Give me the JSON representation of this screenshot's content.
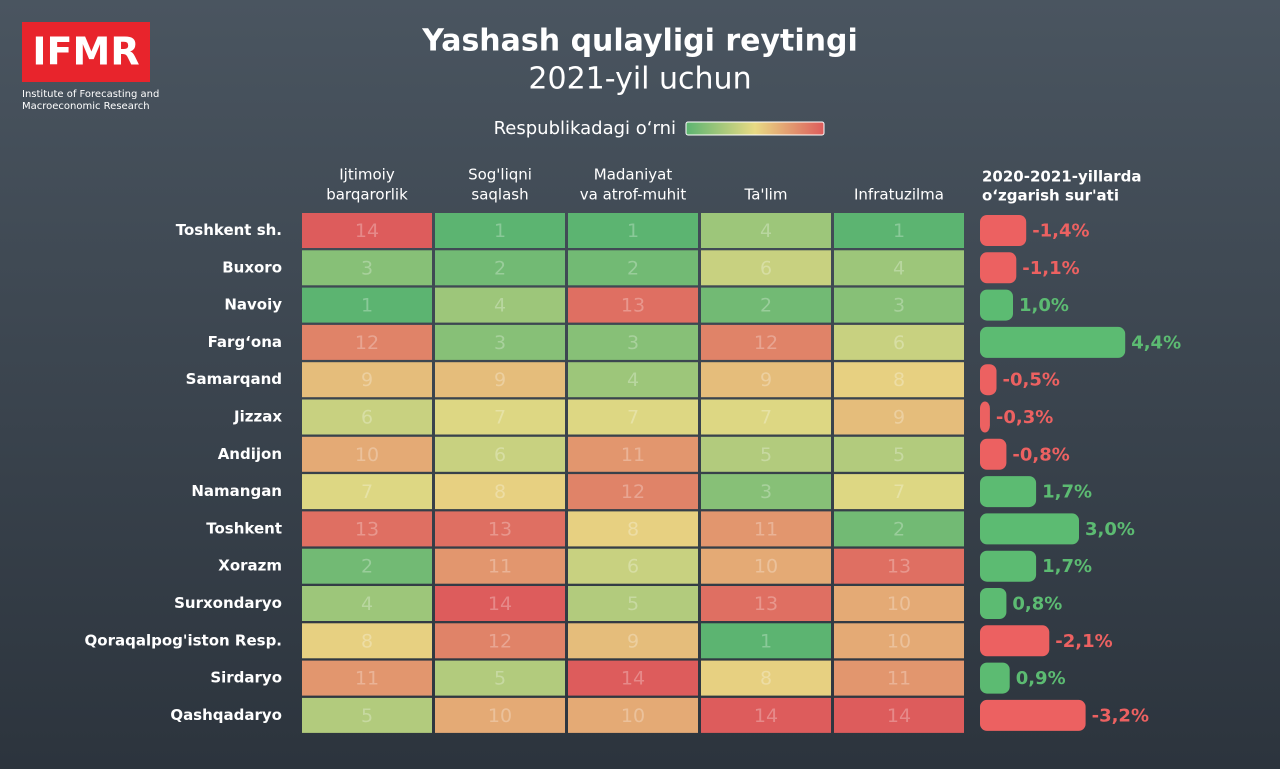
{
  "logo_text": "IFMR",
  "logo_subtitle": [
    "Institute of Forecasting and",
    "Macroeconomic Research"
  ],
  "chart_data": [
    {
      "type": "heatmap",
      "title": "Yashash qulayligi reytingi",
      "subtitle": "2021-yil uchun",
      "legend_label": "Respublikadagi o‘rni",
      "colorscale": [
        "#5cb471",
        "#e8da84",
        "#dd5c5c"
      ],
      "columns": [
        [
          "Ijtimoiy",
          "barqarorlik"
        ],
        [
          "Sog'liqni",
          "saqlash"
        ],
        [
          "Madaniyat",
          "va atrof-muhit"
        ],
        [
          "Ta'lim"
        ],
        [
          "Infratuzilma"
        ]
      ],
      "rows": [
        "Toshkent sh.",
        "Buxoro",
        "Navoiy",
        "Farg‘ona",
        "Samarqand",
        "Jizzax",
        "Andijon",
        "Namangan",
        "Toshkent",
        "Xorazm",
        "Surxondaryo",
        "Qoraqalpog'iston Resp.",
        "Sirdaryo",
        "Qashqadaryo"
      ],
      "values": [
        [
          14,
          1,
          1,
          4,
          1
        ],
        [
          3,
          2,
          2,
          6,
          4
        ],
        [
          1,
          4,
          13,
          2,
          3
        ],
        [
          12,
          3,
          3,
          12,
          6
        ],
        [
          9,
          9,
          4,
          9,
          8
        ],
        [
          6,
          7,
          7,
          7,
          9
        ],
        [
          10,
          6,
          11,
          5,
          5
        ],
        [
          7,
          8,
          12,
          3,
          7
        ],
        [
          13,
          13,
          8,
          11,
          2
        ],
        [
          2,
          11,
          6,
          10,
          13
        ],
        [
          4,
          14,
          5,
          13,
          10
        ],
        [
          8,
          12,
          9,
          1,
          10
        ],
        [
          11,
          5,
          14,
          8,
          11
        ],
        [
          5,
          10,
          10,
          14,
          14
        ]
      ]
    },
    {
      "type": "bar",
      "title": [
        "2020-2021-yillarda",
        "o‘zgarish sur'ati"
      ],
      "positive_color": "#5cbb72",
      "negative_color": "#ec6161",
      "values": [
        -1.4,
        -1.1,
        1.0,
        4.4,
        -0.5,
        -0.3,
        -0.8,
        1.7,
        3.0,
        1.7,
        0.8,
        -2.1,
        0.9,
        -3.2
      ],
      "value_labels": [
        "-1,4%",
        "-1,1%",
        "1,0%",
        "4,4%",
        "-0,5%",
        "-0,3%",
        "-0,8%",
        "1,7%",
        "3,0%",
        "1,7%",
        "0,8%",
        "-2,1%",
        "0,9%",
        "-3,2%"
      ]
    }
  ]
}
